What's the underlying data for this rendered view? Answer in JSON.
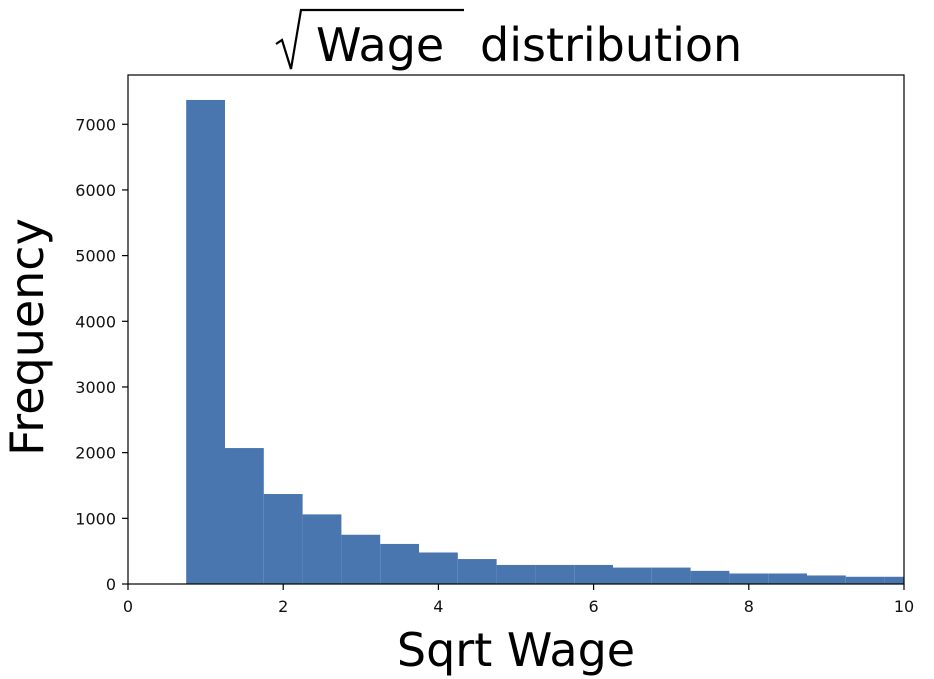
{
  "chart_data": {
    "type": "bar",
    "title": {
      "radical_text": "Wage",
      "text": "distribution"
    },
    "xlabel": "Sqrt Wage",
    "ylabel": "Frequency",
    "xlim": [
      0,
      10
    ],
    "ylim": [
      0,
      7750
    ],
    "x_ticks": [
      "0",
      "2",
      "4",
      "6",
      "8",
      "10"
    ],
    "y_ticks": [
      "0",
      "1000",
      "2000",
      "3000",
      "4000",
      "5000",
      "6000",
      "7000"
    ],
    "bins": [
      {
        "x0": 0.75,
        "x1": 1.25,
        "value": 7370
      },
      {
        "x0": 1.25,
        "x1": 1.75,
        "value": 2070
      },
      {
        "x0": 1.75,
        "x1": 2.25,
        "value": 1370
      },
      {
        "x0": 2.25,
        "x1": 2.75,
        "value": 1060
      },
      {
        "x0": 2.75,
        "x1": 3.25,
        "value": 750
      },
      {
        "x0": 3.25,
        "x1": 3.75,
        "value": 610
      },
      {
        "x0": 3.75,
        "x1": 4.25,
        "value": 480
      },
      {
        "x0": 4.25,
        "x1": 4.75,
        "value": 380
      },
      {
        "x0": 4.75,
        "x1": 5.25,
        "value": 290
      },
      {
        "x0": 5.25,
        "x1": 5.75,
        "value": 290
      },
      {
        "x0": 5.75,
        "x1": 6.25,
        "value": 290
      },
      {
        "x0": 6.25,
        "x1": 6.75,
        "value": 250
      },
      {
        "x0": 6.75,
        "x1": 7.25,
        "value": 250
      },
      {
        "x0": 7.25,
        "x1": 7.75,
        "value": 200
      },
      {
        "x0": 7.75,
        "x1": 8.25,
        "value": 160
      },
      {
        "x0": 8.25,
        "x1": 8.75,
        "value": 160
      },
      {
        "x0": 8.75,
        "x1": 9.25,
        "value": 130
      },
      {
        "x0": 9.25,
        "x1": 9.75,
        "value": 110
      },
      {
        "x0": 9.75,
        "x1": 10.25,
        "value": 110
      }
    ],
    "bar_color": "#4a76b0",
    "grid": false,
    "legend": false
  }
}
